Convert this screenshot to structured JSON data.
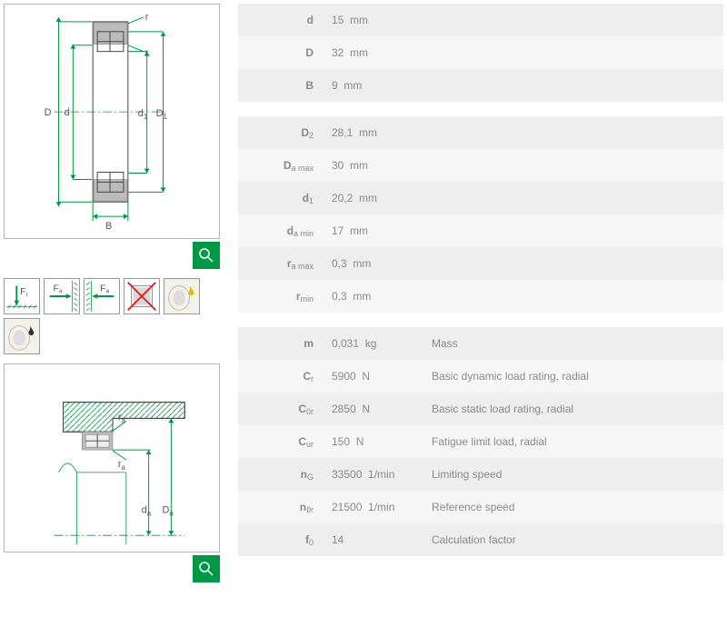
{
  "colors": {
    "accent": "#009846",
    "row_odd": "#eeeeee",
    "row_even": "#f7f7f7",
    "text": "#8a8a8a",
    "label": "#555"
  },
  "diagram1": {
    "labels": {
      "D": "D",
      "d": "d",
      "d1": "d₁",
      "D1": "D₁",
      "r": "r",
      "B": "B"
    }
  },
  "diagram2": {
    "labels": {
      "ra1": "rₐ",
      "ra2": "rₐ",
      "da": "dₐ",
      "Da": "Dₐ"
    }
  },
  "table1": [
    {
      "sym": "d",
      "val": "15",
      "unit": "mm"
    },
    {
      "sym": "D",
      "val": "32",
      "unit": "mm"
    },
    {
      "sym": "B",
      "val": "9",
      "unit": "mm"
    }
  ],
  "table2": [
    {
      "sym": "D",
      "sub": "2",
      "val": "28,1",
      "unit": "mm"
    },
    {
      "sym": "D",
      "sub": "a max",
      "val": "30",
      "unit": "mm"
    },
    {
      "sym": "d",
      "sub": "1",
      "val": "20,2",
      "unit": "mm"
    },
    {
      "sym": "d",
      "sub": "a min",
      "val": "17",
      "unit": "mm"
    },
    {
      "sym": "r",
      "sub": "a max",
      "val": "0,3",
      "unit": "mm"
    },
    {
      "sym": "r",
      "sub": "min",
      "val": "0,3",
      "unit": "mm"
    }
  ],
  "table3": [
    {
      "sym": "m",
      "val": "0,031",
      "unit": "kg",
      "desc": "Mass"
    },
    {
      "sym": "C",
      "sub": "r",
      "val": "5900",
      "unit": "N",
      "desc": "Basic dynamic load rating, radial"
    },
    {
      "sym": "C",
      "sub": "0r",
      "val": "2850",
      "unit": "N",
      "desc": "Basic static load rating, radial"
    },
    {
      "sym": "C",
      "sub": "ur",
      "val": "150",
      "unit": "N",
      "desc": "Fatigue limit load, radial"
    },
    {
      "sym": "n",
      "sub": "G",
      "val": "33500",
      "unit": "1/min",
      "desc": "Limiting speed"
    },
    {
      "sym": "n",
      "sub": "ϑr",
      "val": "21500",
      "unit": "1/min",
      "desc": "Reference speed"
    },
    {
      "sym": "f",
      "sub": "0",
      "val": "14",
      "unit": "",
      "desc": "Calculation factor"
    }
  ],
  "icons": [
    "Fr",
    "Fa",
    "Fa",
    "no",
    "oil",
    "drop"
  ]
}
